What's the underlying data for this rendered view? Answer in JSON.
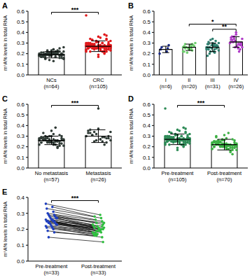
{
  "chart_data": [
    {
      "type": "bar",
      "title": "A",
      "y_label": "m⁶A% levels in total RNA",
      "categories": [
        "NCs\n(n=64)",
        "CRC\n(n=105)"
      ],
      "values": [
        0.19,
        0.27
      ],
      "errors": [
        0.03,
        0.05
      ],
      "colors": [
        "#2f3a35",
        "#e0191b"
      ],
      "ylim": [
        0,
        0.6
      ],
      "yticks": [
        {
          "value": 0,
          "label": "0.0"
        },
        0.1,
        0.2,
        0.3,
        0.4,
        0.5,
        0.6
      ],
      "annotations": [
        {
          "text": "***",
          "from": 0,
          "to": 1
        }
      ],
      "points": [
        [
          0.19,
          0.21,
          0.17,
          0.2,
          0.18,
          0.22,
          0.16,
          0.19,
          0.23,
          0.2,
          0.18,
          0.15,
          0.21,
          0.19,
          0.24,
          0.17,
          0.2,
          0.18,
          0.22,
          0.19,
          0.16,
          0.21,
          0.2,
          0.14,
          0.19,
          0.23,
          0.18,
          0.2,
          0.17,
          0.22,
          0.19,
          0.21,
          0.18,
          0.25,
          0.2,
          0.16,
          0.19,
          0.22,
          0.18,
          0.2,
          0.13,
          0.21,
          0.19,
          0.17,
          0.23,
          0.2,
          0.18,
          0.22,
          0.19,
          0.21,
          0.16,
          0.2,
          0.18,
          0.24,
          0.19,
          0.17,
          0.21,
          0.2,
          0.15,
          0.22,
          0.19,
          0.18,
          0.2,
          0.26
        ],
        [
          0.27,
          0.25,
          0.3,
          0.22,
          0.28,
          0.26,
          0.33,
          0.24,
          0.29,
          0.27,
          0.31,
          0.23,
          0.26,
          0.28,
          0.35,
          0.25,
          0.27,
          0.3,
          0.21,
          0.29,
          0.26,
          0.28,
          0.24,
          0.32,
          0.27,
          0.25,
          0.3,
          0.23,
          0.28,
          0.26,
          0.34,
          0.27,
          0.29,
          0.22,
          0.26,
          0.31,
          0.25,
          0.28,
          0.36,
          0.27,
          0.24,
          0.3,
          0.26,
          0.28,
          0.2,
          0.27,
          0.33,
          0.25,
          0.29,
          0.26,
          0.27,
          0.31,
          0.23,
          0.28,
          0.25,
          0.3,
          0.26,
          0.38,
          0.27,
          0.24,
          0.29,
          0.26,
          0.32,
          0.25,
          0.28,
          0.22,
          0.27,
          0.3,
          0.26,
          0.29,
          0.25,
          0.33,
          0.27,
          0.24,
          0.28,
          0.31,
          0.26,
          0.19,
          0.29,
          0.27,
          0.25,
          0.3,
          0.28,
          0.23,
          0.27,
          0.34,
          0.26,
          0.29,
          0.25,
          0.28,
          0.31,
          0.24,
          0.27,
          0.26,
          0.3,
          0.22,
          0.28,
          0.25,
          0.37,
          0.27,
          0.29,
          0.26,
          0.32,
          0.17,
          0.56
        ]
      ]
    },
    {
      "type": "bar",
      "title": "B",
      "y_label": "m⁶A% levels in total RNA",
      "categories": [
        "I\n(n=6)",
        "II\n(n=20)",
        "III\n(n=31)",
        "IV\n(n=26)"
      ],
      "values": [
        0.24,
        0.26,
        0.26,
        0.31
      ],
      "errors": [
        0.03,
        0.03,
        0.04,
        0.05
      ],
      "colors": [
        "#1a2a8a",
        "#6fcf6f",
        "#2f7f6f",
        "#b03cc8"
      ],
      "ylim": [
        0,
        0.6
      ],
      "yticks": [
        {
          "value": 0,
          "label": "0.0"
        },
        0.1,
        0.2,
        0.3,
        0.4,
        0.5,
        0.6
      ],
      "annotations": [
        {
          "text": "**",
          "from": 2,
          "to": 3
        },
        {
          "text": "*",
          "from": 1,
          "to": 3
        }
      ],
      "points": [
        [
          0.2,
          0.22,
          0.24,
          0.25,
          0.26,
          0.28
        ],
        [
          0.22,
          0.24,
          0.27,
          0.25,
          0.29,
          0.23,
          0.26,
          0.28,
          0.21,
          0.27,
          0.25,
          0.3,
          0.24,
          0.26,
          0.28,
          0.22,
          0.27,
          0.25,
          0.29,
          0.26
        ],
        [
          0.26,
          0.22,
          0.29,
          0.24,
          0.31,
          0.27,
          0.2,
          0.25,
          0.33,
          0.26,
          0.28,
          0.23,
          0.3,
          0.25,
          0.27,
          0.18,
          0.29,
          0.24,
          0.32,
          0.26,
          0.28,
          0.22,
          0.27,
          0.25,
          0.3,
          0.34,
          0.24,
          0.28,
          0.26,
          0.21,
          0.29
        ],
        [
          0.3,
          0.27,
          0.33,
          0.25,
          0.36,
          0.29,
          0.31,
          0.24,
          0.34,
          0.28,
          0.32,
          0.26,
          0.38,
          0.3,
          0.27,
          0.35,
          0.29,
          0.33,
          0.22,
          0.31,
          0.28,
          0.36,
          0.3,
          0.26,
          0.34,
          0.4
        ]
      ]
    },
    {
      "type": "bar",
      "title": "C",
      "y_label": "m⁶A% levels in total RNA",
      "categories": [
        "No metastasis\n(n=57)",
        "Metastasis\n(n=26)"
      ],
      "values": [
        0.26,
        0.3
      ],
      "errors": [
        0.04,
        0.06
      ],
      "colors": [
        "#2f3a35",
        "#2f3a35"
      ],
      "ylim": [
        0,
        0.6
      ],
      "yticks": [
        {
          "value": 0,
          "label": "0.0"
        },
        0.1,
        0.2,
        0.3,
        0.4,
        0.5,
        0.6
      ],
      "annotations": [
        {
          "text": "***",
          "from": 0,
          "to": 1
        }
      ],
      "points": [
        [
          0.26,
          0.24,
          0.28,
          0.22,
          0.27,
          0.25,
          0.3,
          0.23,
          0.29,
          0.26,
          0.27,
          0.21,
          0.25,
          0.28,
          0.32,
          0.24,
          0.26,
          0.29,
          0.2,
          0.27,
          0.25,
          0.28,
          0.23,
          0.3,
          0.26,
          0.24,
          0.27,
          0.22,
          0.29,
          0.25,
          0.33,
          0.26,
          0.28,
          0.21,
          0.25,
          0.3,
          0.24,
          0.27,
          0.35,
          0.26,
          0.23,
          0.29,
          0.25,
          0.27,
          0.19,
          0.26,
          0.31,
          0.24,
          0.28,
          0.25,
          0.26,
          0.3,
          0.22,
          0.27,
          0.24,
          0.38,
          0.26
        ],
        [
          0.3,
          0.27,
          0.33,
          0.25,
          0.36,
          0.29,
          0.31,
          0.24,
          0.34,
          0.28,
          0.32,
          0.26,
          0.37,
          0.3,
          0.27,
          0.35,
          0.29,
          0.33,
          0.22,
          0.31,
          0.28,
          0.25,
          0.3,
          0.26,
          0.34,
          0.56
        ]
      ]
    },
    {
      "type": "bar",
      "title": "D",
      "y_label": "m⁶A% levels in total RNA",
      "categories": [
        "Pre-treatment\n(n=105)",
        "Post-treatment\n(n=70)"
      ],
      "values": [
        0.27,
        0.22
      ],
      "errors": [
        0.05,
        0.05
      ],
      "colors": [
        "#2e8b57",
        "#3cb043"
      ],
      "ylim": [
        0,
        0.6
      ],
      "yticks": [
        {
          "value": 0,
          "label": "0.0"
        },
        0.1,
        0.2,
        0.3,
        0.4,
        0.5,
        0.6
      ],
      "annotations": [
        {
          "text": "***",
          "from": 0,
          "to": 1
        }
      ],
      "points": [
        [
          0.27,
          0.25,
          0.3,
          0.22,
          0.28,
          0.26,
          0.33,
          0.24,
          0.29,
          0.27,
          0.31,
          0.23,
          0.26,
          0.28,
          0.35,
          0.25,
          0.27,
          0.3,
          0.21,
          0.29,
          0.26,
          0.28,
          0.24,
          0.32,
          0.27,
          0.25,
          0.3,
          0.23,
          0.28,
          0.26,
          0.34,
          0.27,
          0.29,
          0.22,
          0.26,
          0.31,
          0.25,
          0.28,
          0.36,
          0.27,
          0.24,
          0.3,
          0.26,
          0.28,
          0.2,
          0.27,
          0.33,
          0.25,
          0.29,
          0.26,
          0.27,
          0.31,
          0.23,
          0.28,
          0.25,
          0.3,
          0.26,
          0.38,
          0.27,
          0.24,
          0.29,
          0.26,
          0.32,
          0.25,
          0.28,
          0.22,
          0.27,
          0.3,
          0.26,
          0.29,
          0.25,
          0.33,
          0.27,
          0.24,
          0.28,
          0.31,
          0.26,
          0.19,
          0.29,
          0.27,
          0.25,
          0.3,
          0.28,
          0.23,
          0.27,
          0.34,
          0.26,
          0.29,
          0.25,
          0.28,
          0.31,
          0.24,
          0.27,
          0.26,
          0.3,
          0.22,
          0.28,
          0.25,
          0.37,
          0.27,
          0.29,
          0.26,
          0.32,
          0.17,
          0.56
        ],
        [
          0.22,
          0.2,
          0.24,
          0.18,
          0.23,
          0.21,
          0.26,
          0.19,
          0.25,
          0.22,
          0.23,
          0.17,
          0.21,
          0.24,
          0.28,
          0.2,
          0.22,
          0.25,
          0.16,
          0.23,
          0.21,
          0.24,
          0.19,
          0.26,
          0.22,
          0.2,
          0.23,
          0.18,
          0.25,
          0.21,
          0.29,
          0.22,
          0.24,
          0.17,
          0.21,
          0.26,
          0.2,
          0.23,
          0.31,
          0.22,
          0.19,
          0.25,
          0.21,
          0.23,
          0.15,
          0.22,
          0.27,
          0.2,
          0.24,
          0.21,
          0.22,
          0.26,
          0.18,
          0.23,
          0.2,
          0.33,
          0.22,
          0.19,
          0.25,
          0.13,
          0.24,
          0.21,
          0.27,
          0.2,
          0.23,
          0.18,
          0.22,
          0.25,
          0.21,
          0.3
        ]
      ]
    },
    {
      "type": "paired",
      "title": "E",
      "y_label": "m⁶A% levels in total RNA",
      "categories": [
        "Pre-treatment\n(n=33)",
        "Post-treatment\n(n=33)"
      ],
      "colors": [
        "#1f3fbf",
        "#2fbf3f"
      ],
      "ylim": [
        0,
        0.4
      ],
      "yticks": [
        {
          "value": 0,
          "label": "0.0"
        },
        0.1,
        0.2,
        0.3,
        0.4
      ],
      "annotations": [
        {
          "text": "***",
          "from": 0,
          "to": 1
        }
      ],
      "points": [
        [
          0.36,
          0.34,
          0.33,
          0.31,
          0.3,
          0.29,
          0.29,
          0.28,
          0.28,
          0.27,
          0.27,
          0.27,
          0.26,
          0.26,
          0.26,
          0.25,
          0.25,
          0.25,
          0.25,
          0.24,
          0.24,
          0.24,
          0.23,
          0.23,
          0.23,
          0.22,
          0.22,
          0.21,
          0.21,
          0.2,
          0.19,
          0.18,
          0.15
        ],
        [
          0.29,
          0.28,
          0.27,
          0.26,
          0.25,
          0.24,
          0.23,
          0.22,
          0.24,
          0.21,
          0.23,
          0.2,
          0.22,
          0.19,
          0.21,
          0.2,
          0.18,
          0.22,
          0.19,
          0.2,
          0.17,
          0.21,
          0.19,
          0.18,
          0.2,
          0.17,
          0.19,
          0.16,
          0.18,
          0.17,
          0.15,
          0.16,
          0.12
        ]
      ]
    }
  ]
}
